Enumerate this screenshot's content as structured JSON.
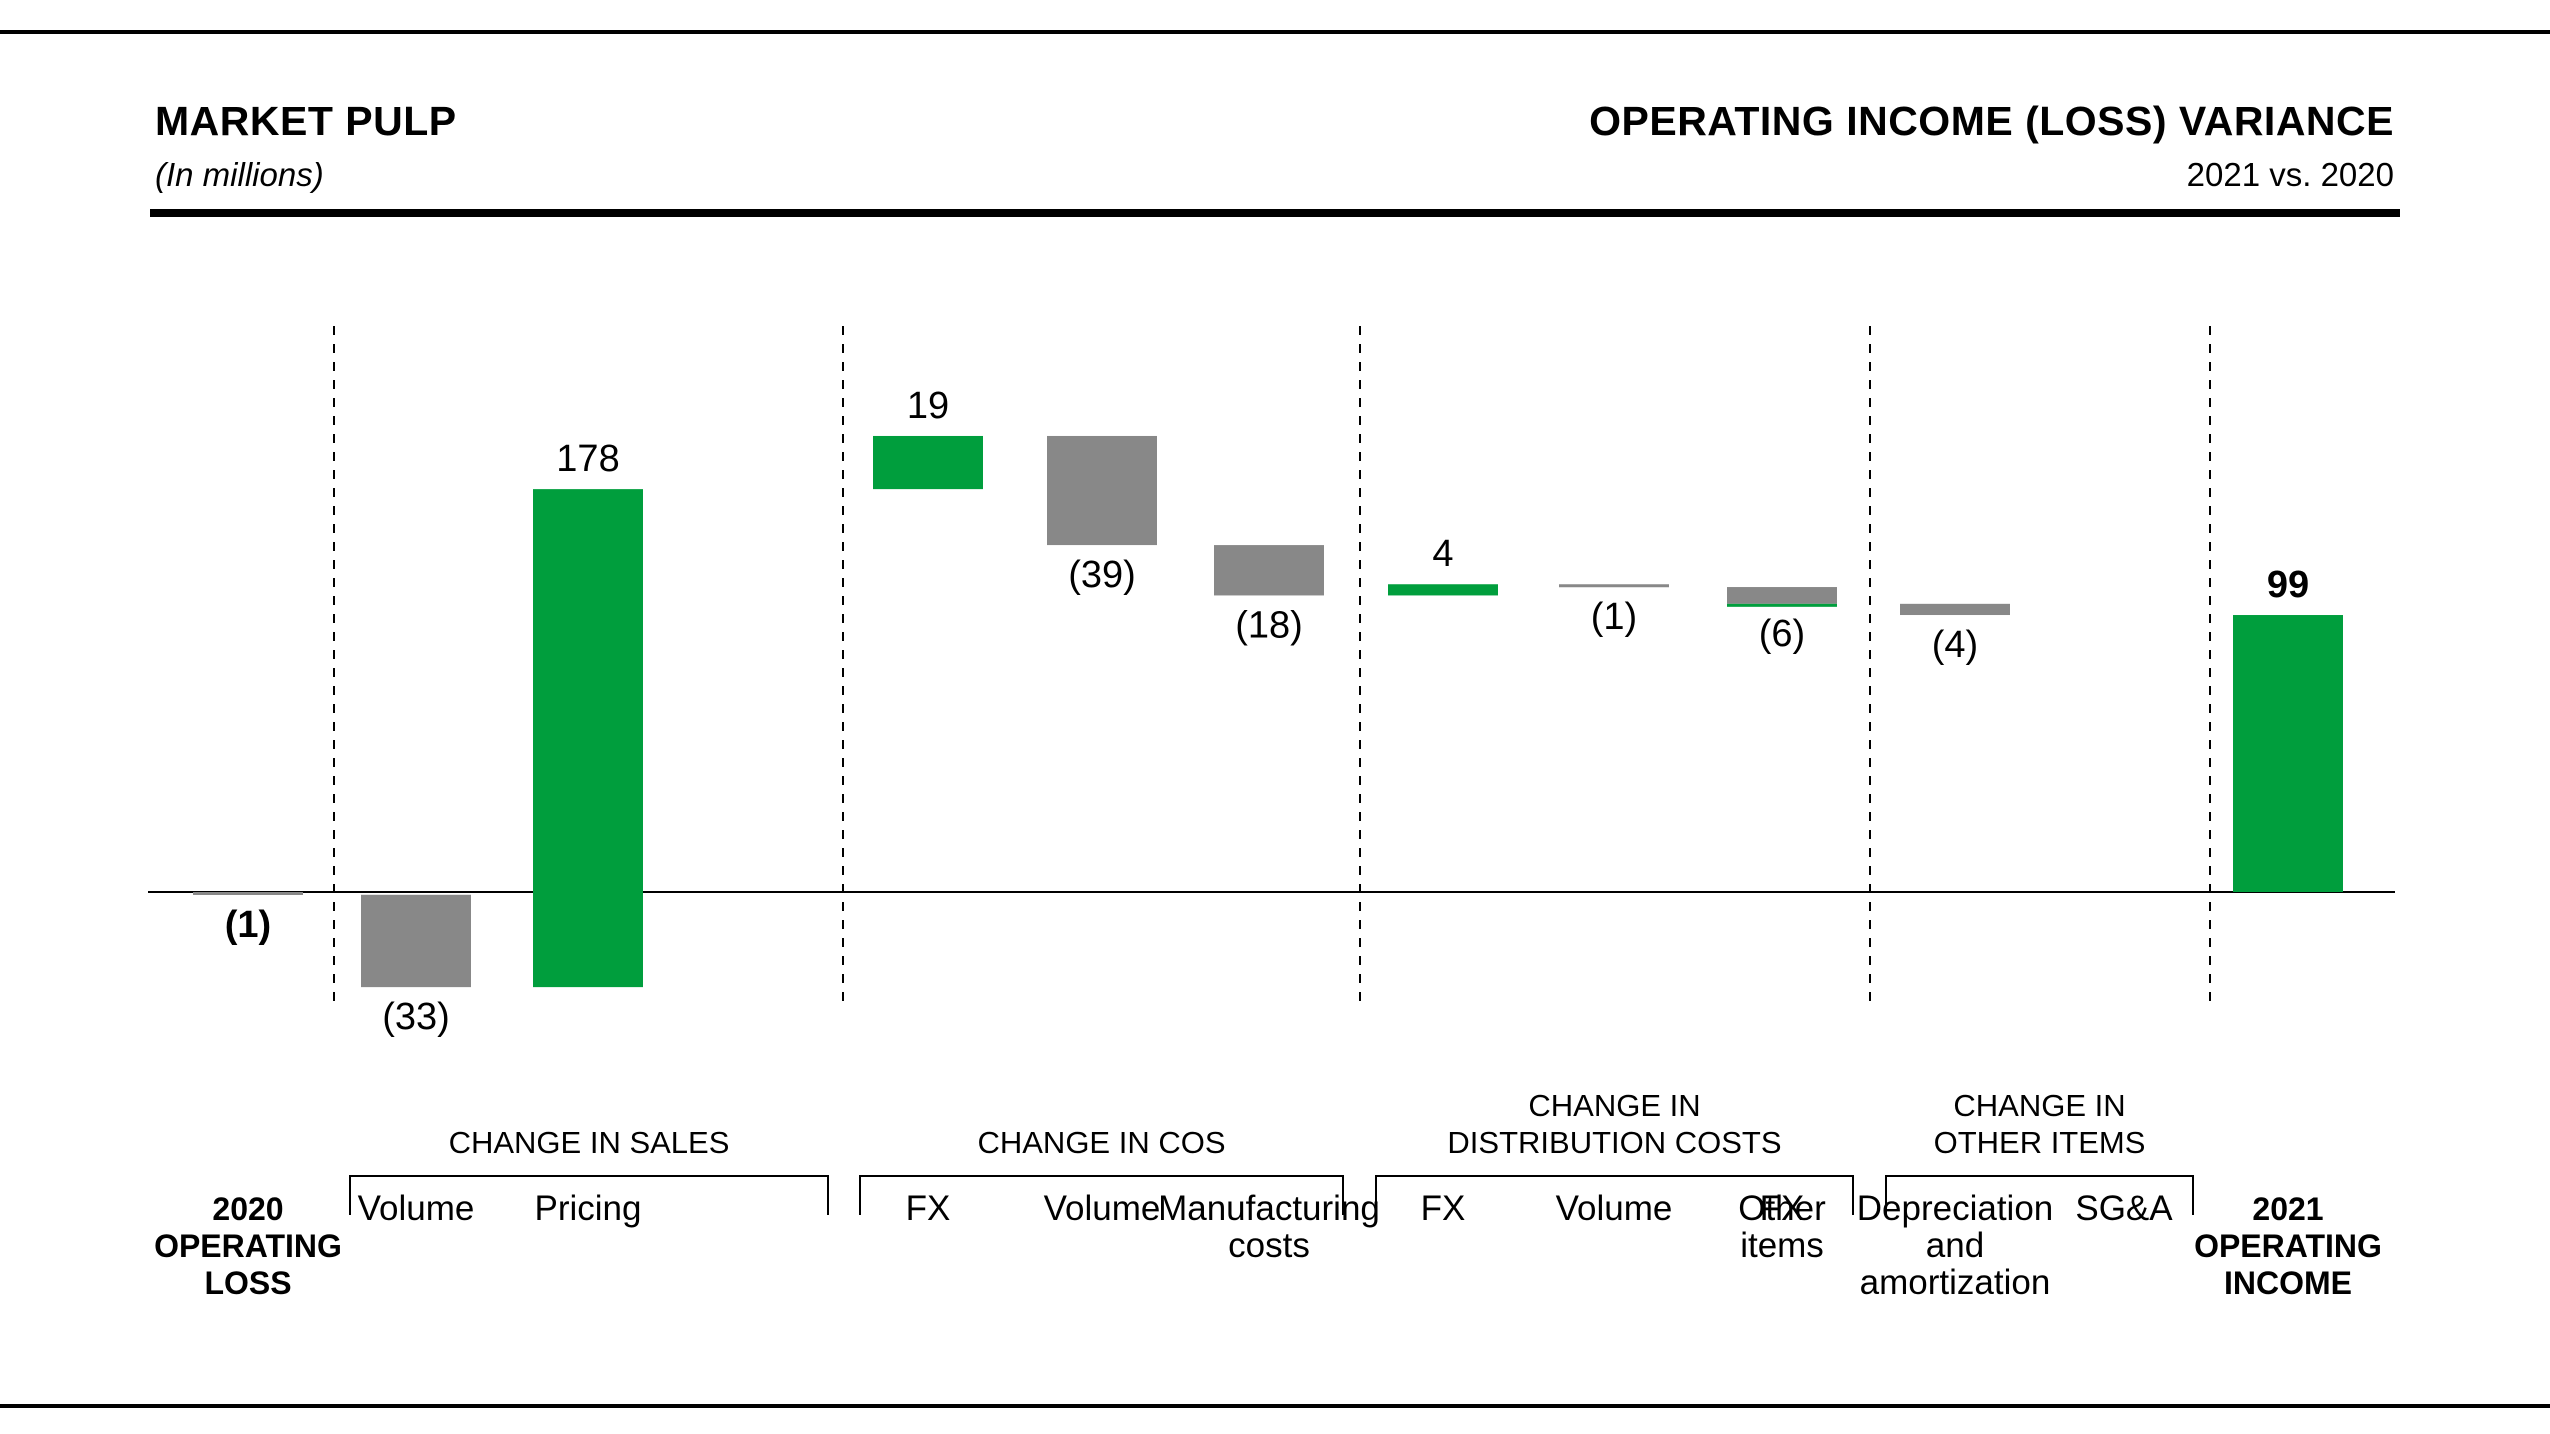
{
  "header": {
    "title": "MARKET PULP",
    "subtitle": "(In millions)",
    "right_title": "OPERATING INCOME (LOSS) VARIANCE",
    "right_subtitle": "2021 vs. 2020"
  },
  "colors": {
    "positive": "#009e3d",
    "negative": "#888888",
    "text": "#000000"
  },
  "chart_data": {
    "type": "bar",
    "subtype": "waterfall",
    "bars": [
      {
        "label": [
          "2020",
          "OPERATING",
          "LOSS"
        ],
        "value": -1,
        "display": "(1)",
        "kind": "total",
        "bold": true
      },
      {
        "label": [
          "Volume"
        ],
        "value": -33,
        "display": "(33)",
        "kind": "delta"
      },
      {
        "label": [
          "Pricing"
        ],
        "value": 178,
        "display": "178",
        "kind": "delta"
      },
      {
        "label": [
          "FX"
        ],
        "value": 19,
        "display": "19",
        "kind": "delta"
      },
      {
        "label": [
          "Volume"
        ],
        "value": -39,
        "display": "(39)",
        "kind": "delta",
        "label_offset": 1
      },
      {
        "label": [
          "Manufacturing",
          "costs"
        ],
        "value": -18,
        "display": "(18)",
        "kind": "delta",
        "label_offset": -1
      },
      {
        "label": [
          "FX"
        ],
        "value": 4,
        "display": "4",
        "kind": "delta",
        "label_offset": -1
      },
      {
        "label": [
          "Volume"
        ],
        "value": -1,
        "display": "(1)",
        "kind": "delta",
        "label_offset": 1
      },
      {
        "label": [
          "FX"
        ],
        "value": -6,
        "display": "(6)",
        "kind": "delta"
      },
      {
        "label": [
          "Other",
          "items"
        ],
        "value": 0,
        "display": "",
        "kind": "delta",
        "label_offset": -1
      },
      {
        "label": [
          "Depreciation",
          "and",
          "amortization"
        ],
        "value": -4,
        "display": "(4)",
        "kind": "delta",
        "label_offset": 1
      },
      {
        "label": [
          "SG&A"
        ],
        "value": 0,
        "display": "",
        "kind": "none"
      },
      {
        "label": [
          "2021",
          "OPERATING",
          "INCOME"
        ],
        "value": 99,
        "display": "99",
        "kind": "total",
        "bold": true
      }
    ],
    "groups": [
      {
        "title": [
          "CHANGE IN SALES"
        ]
      },
      {
        "title": [
          "CHANGE IN COS"
        ]
      },
      {
        "title": [
          "CHANGE IN",
          "DISTRIBUTION COSTS"
        ]
      },
      {
        "title": [
          "CHANGE IN",
          "OTHER ITEMS"
        ]
      }
    ],
    "ylim": [
      -33,
      178
    ],
    "title": "",
    "xlabel": "",
    "ylabel": ""
  }
}
